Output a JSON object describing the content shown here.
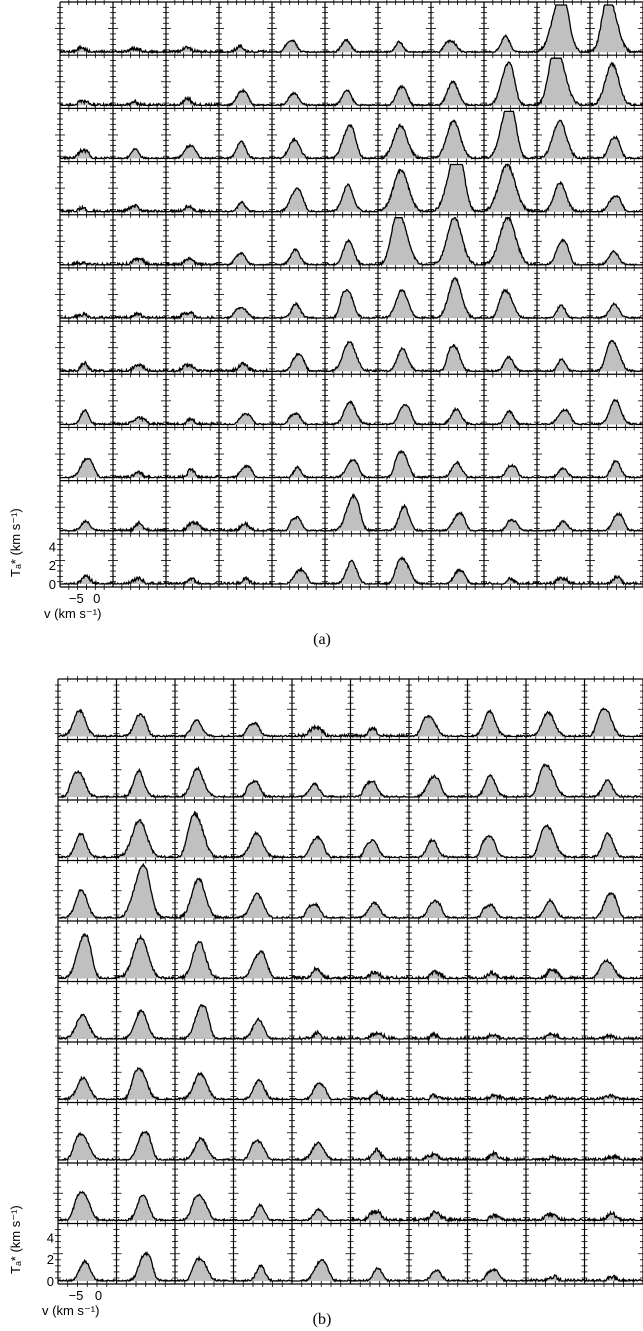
{
  "chart_data": [
    {
      "type": "area",
      "panel": "(a)",
      "rows": 11,
      "cols": 11,
      "xlabel": "v (km s⁻¹)",
      "ylabel": "Tₐ* (km s⁻¹)",
      "xlim": [
        -9,
        4
      ],
      "ylim": [
        0,
        5
      ],
      "x_tick_labels": [
        "−5",
        "0"
      ],
      "y_tick_labels": [
        "0",
        "2",
        "4"
      ],
      "fill_color": "#c0c0c0",
      "line_color": "#000000",
      "peak_heights": [
        [
          0.5,
          0.4,
          0.5,
          0.7,
          1.2,
          1.3,
          1.1,
          1.1,
          1.7,
          4.6,
          4.4
        ],
        [
          0.4,
          0.4,
          0.7,
          1.4,
          1.3,
          1.6,
          1.8,
          2.5,
          3.5,
          4.6,
          4.4
        ],
        [
          0.8,
          1.0,
          1.2,
          1.8,
          2.0,
          2.8,
          3.5,
          4.0,
          4.6,
          4.0,
          2.0
        ],
        [
          0.4,
          0.6,
          0.6,
          1.0,
          2.0,
          2.8,
          4.4,
          5.0,
          5.0,
          3.1,
          1.4
        ],
        [
          0.2,
          0.6,
          0.7,
          1.2,
          1.6,
          2.6,
          4.2,
          5.0,
          5.0,
          2.2,
          1.4
        ],
        [
          0.4,
          0.5,
          0.6,
          1.0,
          1.5,
          2.6,
          3.0,
          4.2,
          2.4,
          1.4,
          1.5
        ],
        [
          0.9,
          0.6,
          0.7,
          0.8,
          1.6,
          3.1,
          2.4,
          2.4,
          1.5,
          1.3,
          2.6
        ],
        [
          1.5,
          0.7,
          0.6,
          1.0,
          1.1,
          2.4,
          1.8,
          1.6,
          1.4,
          1.3,
          2.6
        ],
        [
          1.7,
          0.6,
          0.9,
          1.1,
          1.1,
          1.6,
          2.4,
          1.6,
          1.2,
          1.0,
          1.8
        ],
        [
          1.0,
          0.8,
          0.8,
          0.8,
          1.4,
          2.9,
          2.6,
          1.6,
          1.1,
          1.0,
          1.6
        ],
        [
          0.8,
          0.6,
          0.5,
          0.6,
          1.3,
          2.4,
          2.2,
          1.3,
          0.6,
          0.6,
          0.8
        ]
      ]
    },
    {
      "type": "area",
      "panel": "(b)",
      "rows": 10,
      "cols": 10,
      "xlabel": "v (km s⁻¹)",
      "ylabel": "Tₐ* (km s⁻¹)",
      "xlim": [
        -9,
        4
      ],
      "ylim": [
        0,
        5
      ],
      "x_tick_labels": [
        "−5",
        "0"
      ],
      "y_tick_labels": [
        "0",
        "2",
        "4"
      ],
      "fill_color": "#c0c0c0",
      "line_color": "#000000",
      "peak_heights": [
        [
          2.4,
          1.8,
          1.5,
          1.2,
          0.8,
          0.8,
          1.6,
          2.3,
          2.2,
          2.2
        ],
        [
          2.0,
          2.4,
          2.6,
          1.4,
          1.2,
          1.4,
          1.6,
          2.0,
          2.4,
          1.6
        ],
        [
          2.2,
          3.4,
          3.2,
          2.2,
          1.6,
          1.5,
          1.6,
          1.8,
          2.4,
          2.2
        ],
        [
          2.6,
          3.6,
          3.6,
          2.2,
          1.2,
          1.4,
          1.4,
          1.2,
          1.6,
          2.0
        ],
        [
          3.2,
          3.8,
          3.4,
          2.0,
          0.9,
          0.6,
          0.6,
          0.5,
          0.7,
          1.4
        ],
        [
          2.2,
          2.6,
          2.6,
          1.8,
          0.6,
          0.5,
          0.4,
          0.4,
          0.4,
          0.3
        ],
        [
          2.0,
          2.4,
          2.4,
          1.8,
          1.4,
          0.6,
          0.4,
          0.3,
          0.3,
          0.3
        ],
        [
          2.0,
          2.2,
          2.0,
          1.6,
          1.6,
          0.9,
          0.6,
          0.6,
          0.3,
          0.3
        ],
        [
          2.2,
          2.4,
          2.0,
          1.4,
          1.0,
          0.8,
          0.8,
          0.5,
          0.5,
          0.7
        ],
        [
          1.8,
          2.2,
          1.8,
          1.4,
          1.6,
          1.2,
          1.0,
          1.0,
          0.4,
          0.4
        ]
      ]
    }
  ]
}
